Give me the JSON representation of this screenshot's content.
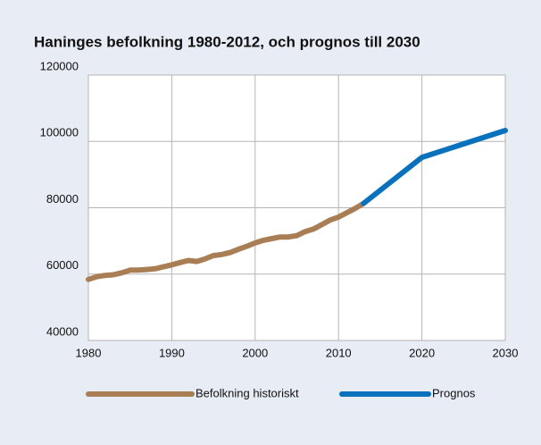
{
  "chart_data": {
    "type": "line",
    "title": "Haninges befolkning 1980-2012, och prognos till 2030",
    "series": [
      {
        "name": "Befolkning historiskt",
        "color": "#a97e55",
        "x": [
          1980,
          1981,
          1982,
          1983,
          1984,
          1985,
          1986,
          1987,
          1988,
          1989,
          1990,
          1991,
          1992,
          1993,
          1994,
          1995,
          1996,
          1997,
          1998,
          1999,
          2000,
          2001,
          2002,
          2003,
          2004,
          2005,
          2006,
          2007,
          2008,
          2009,
          2010,
          2011,
          2012,
          2013
        ],
        "values": [
          58400,
          59200,
          59600,
          59800,
          60400,
          61200,
          61200,
          61400,
          61600,
          62200,
          62800,
          63500,
          64100,
          63800,
          64600,
          65600,
          65900,
          66500,
          67500,
          68400,
          69400,
          70200,
          70700,
          71200,
          71200,
          71600,
          72800,
          73600,
          74900,
          76300,
          77200,
          78500,
          79800,
          81300
        ]
      },
      {
        "name": "Prognos",
        "color": "#0a72bd",
        "x": [
          2013,
          2020,
          2030
        ],
        "values": [
          81300,
          95200,
          103300
        ]
      }
    ],
    "xlim": [
      1980,
      2030
    ],
    "xticks": [
      1980,
      1990,
      2000,
      2010,
      2020,
      2030
    ],
    "ylim": [
      40000,
      120000
    ],
    "yticks": [
      40000,
      60000,
      80000,
      100000,
      120000
    ],
    "grid": true,
    "legend": "bottom"
  }
}
